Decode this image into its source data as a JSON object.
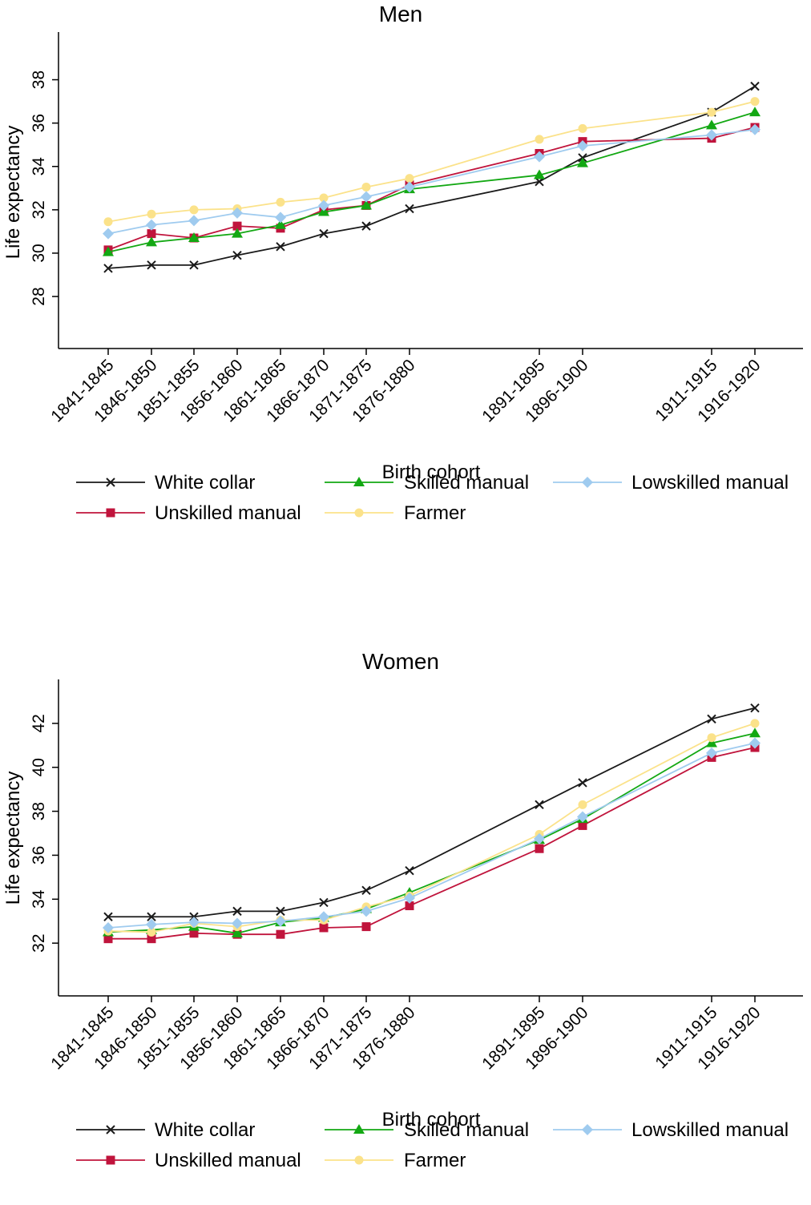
{
  "colors": {
    "White collar": "#1a1a1a",
    "Unskilled manual": "#c0143c",
    "Skilled manual": "#13a813",
    "Farmer": "#fbe28a",
    "Lowskilled manual": "#9fcbef"
  },
  "legend_order": [
    "White collar",
    "Skilled manual",
    "Lowskilled manual",
    "Unskilled manual",
    "Farmer"
  ],
  "chart_data": [
    {
      "type": "line",
      "title": "Men",
      "xlabel": "Birth cohort",
      "ylabel": "Life expectancy",
      "x": [
        "1841-1845",
        "1846-1850",
        "1851-1855",
        "1856-1860",
        "1861-1865",
        "1866-1870",
        "1871-1875",
        "1876-1880",
        "1891-1895",
        "1896-1900",
        "1911-1915",
        "1916-1920"
      ],
      "yticks": [
        28,
        30,
        32,
        34,
        36,
        38
      ],
      "ylim": [
        25.6,
        40.2
      ],
      "grid": false,
      "legend_position": "bottom",
      "series": [
        {
          "name": "White collar",
          "marker": "x",
          "values": [
            29.3,
            29.45,
            29.45,
            29.9,
            30.3,
            30.9,
            31.25,
            32.05,
            33.3,
            34.4,
            36.5,
            37.7
          ]
        },
        {
          "name": "Unskilled manual",
          "marker": "square",
          "values": [
            30.15,
            30.9,
            30.7,
            31.25,
            31.15,
            32.0,
            32.2,
            33.15,
            34.6,
            35.15,
            35.3,
            35.8
          ]
        },
        {
          "name": "Skilled manual",
          "marker": "triangle",
          "values": [
            30.05,
            30.5,
            30.7,
            30.9,
            31.3,
            31.9,
            32.2,
            32.95,
            33.6,
            34.15,
            35.9,
            36.5
          ]
        },
        {
          "name": "Farmer",
          "marker": "circle",
          "values": [
            31.45,
            31.8,
            32.0,
            32.05,
            32.35,
            32.55,
            33.05,
            33.45,
            35.25,
            35.75,
            36.5,
            37.0
          ]
        },
        {
          "name": "Lowskilled manual",
          "marker": "diamond",
          "values": [
            30.9,
            31.3,
            31.5,
            31.85,
            31.65,
            32.2,
            32.6,
            33.05,
            34.45,
            34.95,
            35.45,
            35.7
          ]
        }
      ]
    },
    {
      "type": "line",
      "title": "Women",
      "xlabel": "Birth cohort",
      "ylabel": "Life expectancy",
      "x": [
        "1841-1845",
        "1846-1850",
        "1851-1855",
        "1856-1860",
        "1861-1865",
        "1866-1870",
        "1871-1875",
        "1876-1880",
        "1891-1895",
        "1896-1900",
        "1911-1915",
        "1916-1920"
      ],
      "yticks": [
        32,
        34,
        36,
        38,
        40,
        42
      ],
      "ylim": [
        29.6,
        44.0
      ],
      "grid": false,
      "legend_position": "bottom",
      "series": [
        {
          "name": "White collar",
          "marker": "x",
          "values": [
            33.2,
            33.2,
            33.2,
            33.45,
            33.45,
            33.85,
            34.4,
            35.3,
            38.3,
            39.3,
            42.2,
            42.7
          ]
        },
        {
          "name": "Unskilled manual",
          "marker": "square",
          "values": [
            32.2,
            32.2,
            32.45,
            32.4,
            32.4,
            32.7,
            32.75,
            33.7,
            36.3,
            37.35,
            40.45,
            40.9
          ]
        },
        {
          "name": "Skilled manual",
          "marker": "triangle",
          "values": [
            32.5,
            32.6,
            32.75,
            32.45,
            32.95,
            33.15,
            33.55,
            34.3,
            36.7,
            37.65,
            41.1,
            41.55
          ]
        },
        {
          "name": "Farmer",
          "marker": "circle",
          "values": [
            32.55,
            32.5,
            32.9,
            32.75,
            33.05,
            33.05,
            33.65,
            34.15,
            36.95,
            38.3,
            41.35,
            42.0
          ]
        },
        {
          "name": "Lowskilled manual",
          "marker": "diamond",
          "values": [
            32.7,
            32.85,
            32.95,
            32.9,
            33.0,
            33.2,
            33.45,
            34.05,
            36.75,
            37.75,
            40.65,
            41.1
          ]
        }
      ]
    }
  ]
}
